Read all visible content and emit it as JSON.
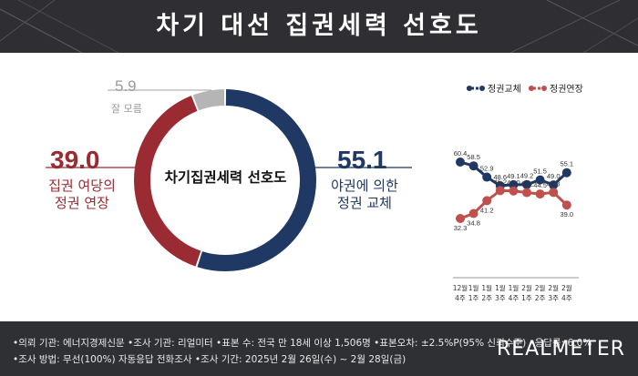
{
  "header": {
    "title": "차기 대선 집권세력 선호도"
  },
  "chart_data": [
    {
      "type": "pie",
      "title": "차기집권세력 선호도",
      "slices": [
        {
          "label": "야권에 의한 정권 교체",
          "value": 55.1,
          "color": "#1f3864"
        },
        {
          "label": "집권 여당의 정권 연장",
          "value": 39.0,
          "color": "#9b2b32"
        },
        {
          "label": "잘 모름",
          "value": 5.9,
          "color": "#b5b5b5"
        }
      ]
    },
    {
      "type": "line",
      "categories": [
        "12월 4주",
        "1월 1주",
        "1월 2주",
        "1월 3주",
        "1월 4주",
        "2월 1주",
        "2월 2주",
        "2월 3주",
        "2월 4주"
      ],
      "series": [
        {
          "name": "정권교체",
          "color": "#1f3864",
          "values": [
            60.4,
            58.5,
            52.9,
            48.6,
            49.1,
            49.2,
            51.5,
            49.0,
            55.1
          ]
        },
        {
          "name": "정권연장",
          "color": "#c0504d",
          "values": [
            32.3,
            34.8,
            41.2,
            46.2,
            46.0,
            45.2,
            44.5,
            45.3,
            39.0
          ]
        }
      ],
      "legend": "top"
    }
  ],
  "donut_labels": {
    "change_value": "55.1",
    "change_label_1": "야권에 의한",
    "change_label_2": "정권 교체",
    "extend_value": "39.0",
    "extend_label_1": "집권 여당의",
    "extend_label_2": "정권 연장",
    "unknown_value": "5.9",
    "unknown_label": "잘 모름",
    "center_label": "차기집권세력 선호도"
  },
  "trend_axis": {
    "ticks": [
      [
        "12월",
        "4주"
      ],
      [
        "1월",
        "1주"
      ],
      [
        "1월",
        "2주"
      ],
      [
        "1월",
        "3주"
      ],
      [
        "1월",
        "4주"
      ],
      [
        "2월",
        "1주"
      ],
      [
        "2월",
        "2주"
      ],
      [
        "2월",
        "3주"
      ],
      [
        "2월",
        "4주"
      ]
    ]
  },
  "footer": {
    "line1": "•의뢰 기관: 에너지경제신문 •조사 기관: 리얼미터 •표본 수: 전국 만 18세 이상 1,506명 •표본오차: ±2.5%P(95% 신뢰수준) •응답률: 6.0%",
    "line2": "•조사 방법: 무선(100%) 자동응답 전화조사 •조사 기간: 2025년 2월 26일(수) ~ 2월 28일(금)",
    "logo": "REALMETER"
  }
}
